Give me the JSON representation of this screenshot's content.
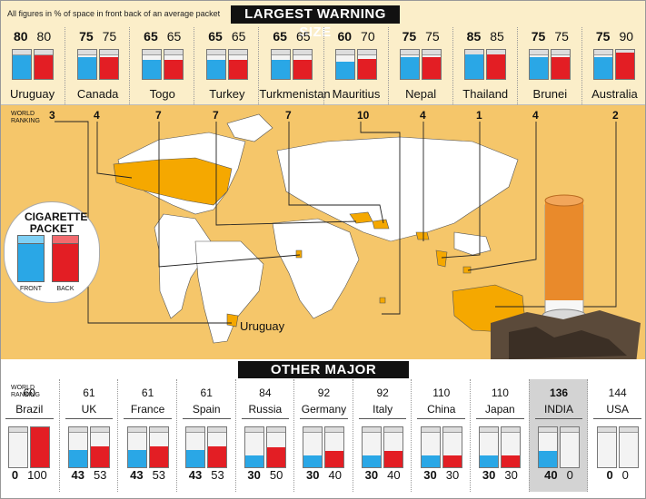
{
  "note": "All figures in % of space in front back of an average packet",
  "top_title": "LARGEST WARNING SIZE",
  "bottom_title": "OTHER MAJOR COUNTRIES",
  "world_ranking_label": "WORLD RANKING",
  "top_countries": [
    {
      "name": "Uruguay",
      "front": "80",
      "back": "80",
      "rank": "3",
      "front_pct": 80,
      "back_pct": 80
    },
    {
      "name": "Canada",
      "front": "75",
      "back": "75",
      "rank": "4",
      "front_pct": 75,
      "back_pct": 75
    },
    {
      "name": "Togo",
      "front": "65",
      "back": "65",
      "rank": "7",
      "front_pct": 65,
      "back_pct": 65
    },
    {
      "name": "Turkey",
      "front": "65",
      "back": "65",
      "rank": "7",
      "front_pct": 65,
      "back_pct": 65
    },
    {
      "name": "Turkmenistan",
      "front": "65",
      "back": "65",
      "rank": "7",
      "front_pct": 65,
      "back_pct": 65
    },
    {
      "name": "Mauritius",
      "front": "60",
      "back": "70",
      "rank": "10",
      "front_pct": 60,
      "back_pct": 70
    },
    {
      "name": "Nepal",
      "front": "75",
      "back": "75",
      "rank": "4",
      "front_pct": 75,
      "back_pct": 75
    },
    {
      "name": "Thailand",
      "front": "85",
      "back": "85",
      "rank": "1",
      "front_pct": 85,
      "back_pct": 85
    },
    {
      "name": "Brunei",
      "front": "75",
      "back": "75",
      "rank": "4",
      "front_pct": 75,
      "back_pct": 75
    },
    {
      "name": "Australia",
      "front": "75",
      "back": "90",
      "rank": "2",
      "front_pct": 75,
      "back_pct": 90
    }
  ],
  "cigarette_packet": {
    "title": "CIGARETTE PACKET",
    "front_label": "FRONT",
    "back_label": "BACK"
  },
  "map_label": "Uruguay",
  "bottom_countries": [
    {
      "name": "Brazil",
      "rank": "60",
      "front": "0",
      "back": "100",
      "front_pct": 0,
      "back_pct": 100
    },
    {
      "name": "UK",
      "rank": "61",
      "front": "43",
      "back": "53",
      "front_pct": 43,
      "back_pct": 53
    },
    {
      "name": "France",
      "rank": "61",
      "front": "43",
      "back": "53",
      "front_pct": 43,
      "back_pct": 53
    },
    {
      "name": "Spain",
      "rank": "61",
      "front": "43",
      "back": "53",
      "front_pct": 43,
      "back_pct": 53
    },
    {
      "name": "Russia",
      "rank": "84",
      "front": "30",
      "back": "50",
      "front_pct": 30,
      "back_pct": 50
    },
    {
      "name": "Germany",
      "rank": "92",
      "front": "30",
      "back": "40",
      "front_pct": 30,
      "back_pct": 40
    },
    {
      "name": "Italy",
      "rank": "92",
      "front": "30",
      "back": "40",
      "front_pct": 30,
      "back_pct": 40
    },
    {
      "name": "China",
      "rank": "110",
      "front": "30",
      "back": "30",
      "front_pct": 30,
      "back_pct": 30
    },
    {
      "name": "Japan",
      "rank": "110",
      "front": "30",
      "back": "30",
      "front_pct": 30,
      "back_pct": 30
    },
    {
      "name": "INDIA",
      "rank": "136",
      "front": "40",
      "back": "0",
      "front_pct": 40,
      "back_pct": 0,
      "highlight": true
    },
    {
      "name": "USA",
      "rank": "144",
      "front": "0",
      "back": "0",
      "front_pct": 0,
      "back_pct": 0
    }
  ],
  "colors": {
    "front": "#2aa7e6",
    "back": "#e31e24",
    "map_highlight": "#f5a800",
    "map_bg": "#f5c66a"
  }
}
